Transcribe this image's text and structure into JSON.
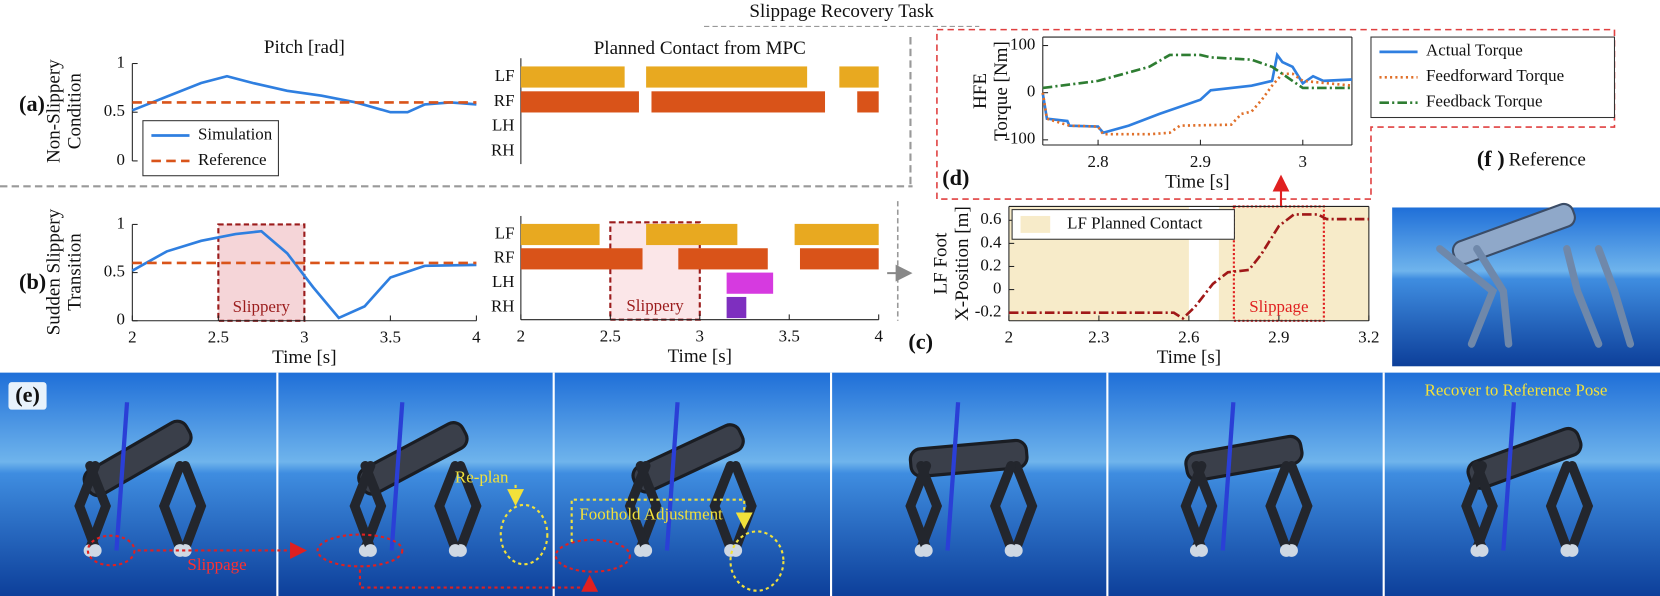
{
  "title": "Slippage Recovery Task",
  "panel_labels": [
    "(a)",
    "(b)",
    "(c)",
    "(d)",
    "(e)"
  ],
  "row_labels": [
    [
      "Non-Slippery",
      "Condition"
    ],
    [
      "Sudden Slippery",
      "Transition"
    ]
  ],
  "chart_data": [
    {
      "type": "line",
      "title": "Pitch [rad]",
      "xlim": [
        2,
        4
      ],
      "ylim": [
        0,
        1
      ],
      "yticks": [
        0,
        0.5,
        1
      ],
      "legend": "lower left",
      "x": [
        2,
        2.2,
        2.4,
        2.55,
        2.7,
        2.9,
        3.1,
        3.3,
        3.5,
        3.6,
        3.7,
        3.85,
        4
      ],
      "series": [
        {
          "name": "Simulation",
          "color": "#2f7fe0",
          "style": "solid",
          "values": [
            0.52,
            0.66,
            0.8,
            0.87,
            0.8,
            0.72,
            0.67,
            0.6,
            0.5,
            0.5,
            0.58,
            0.6,
            0.58
          ]
        },
        {
          "name": "Reference",
          "color": "#d9541a",
          "style": "dashed",
          "x": [
            2,
            4
          ],
          "values": [
            0.6,
            0.6
          ]
        }
      ]
    },
    {
      "type": "gantt",
      "title": "Planned Contact from MPC",
      "xlim": [
        2,
        4
      ],
      "series": [
        {
          "name": "LF",
          "color": "#e8a920",
          "intervals": [
            [
              2,
              2.58
            ],
            [
              2.7,
              3.6
            ],
            [
              3.78,
              4
            ]
          ]
        },
        {
          "name": "RF",
          "color": "#d95319",
          "intervals": [
            [
              2,
              2.66
            ],
            [
              2.73,
              3.7
            ],
            [
              3.88,
              4
            ]
          ]
        },
        {
          "name": "LH",
          "color": "#d63ae0",
          "intervals": []
        },
        {
          "name": "RH",
          "color": "#7e2fbf",
          "intervals": []
        }
      ]
    },
    {
      "type": "line",
      "xlabel": "Time [s]",
      "xlim": [
        2,
        4
      ],
      "xticks": [
        2,
        2.5,
        3,
        3.5,
        4
      ],
      "ylim": [
        0,
        1
      ],
      "yticks": [
        0,
        0.5,
        1
      ],
      "highlight": {
        "range": [
          2.5,
          3
        ],
        "label": "Slippery",
        "fill": "#f5d5d8",
        "edge": "#9b1c1c"
      },
      "x": [
        2,
        2.2,
        2.4,
        2.6,
        2.75,
        2.9,
        3.05,
        3.2,
        3.35,
        3.5,
        3.7,
        4
      ],
      "series": [
        {
          "color": "#2f7fe0",
          "style": "solid",
          "values": [
            0.52,
            0.72,
            0.83,
            0.9,
            0.93,
            0.7,
            0.35,
            0.03,
            0.15,
            0.45,
            0.57,
            0.58
          ]
        },
        {
          "color": "#d9541a",
          "style": "dashed",
          "x": [
            2,
            4
          ],
          "values": [
            0.6,
            0.6
          ]
        }
      ]
    },
    {
      "type": "gantt",
      "xlabel": "Time [s]",
      "xlim": [
        2,
        4
      ],
      "xticks": [
        2,
        2.5,
        3,
        3.5,
        4
      ],
      "highlight": {
        "range": [
          2.5,
          3
        ],
        "label": "Slippery",
        "fill": "#fbe6e8",
        "edge": "#9b1c1c"
      },
      "series": [
        {
          "name": "LF",
          "color": "#e8a920",
          "intervals": [
            [
              2,
              2.44
            ],
            [
              2.7,
              3.21
            ],
            [
              3.53,
              4
            ]
          ]
        },
        {
          "name": "RF",
          "color": "#d95319",
          "intervals": [
            [
              2,
              2.68
            ],
            [
              2.88,
              3.38
            ],
            [
              3.56,
              4
            ]
          ]
        },
        {
          "name": "LH",
          "color": "#d63ae0",
          "intervals": [
            [
              3.15,
              3.41
            ]
          ]
        },
        {
          "name": "RH",
          "color": "#7e2fbf",
          "intervals": [
            [
              3.15,
              3.26
            ]
          ]
        }
      ]
    },
    {
      "type": "line",
      "ylabel": [
        "LF Foot",
        "X-Position [m]"
      ],
      "xlabel": "Time [s]",
      "xlim": [
        2,
        3.2
      ],
      "xticks": [
        2,
        2.3,
        2.6,
        2.9,
        3.2
      ],
      "ylim": [
        -0.27,
        0.72
      ],
      "yticks": [
        -0.2,
        0,
        0.2,
        0.4,
        0.6
      ],
      "legend": "upper left",
      "frame": true,
      "shading": {
        "name": "LF Planned Contact",
        "color": "#f7ebc9",
        "intervals": [
          [
            2,
            2.6
          ],
          [
            2.7,
            3.2
          ]
        ]
      },
      "highlight": {
        "range": [
          2.75,
          3.05
        ],
        "label": "Slippage",
        "fill": "none",
        "edge": "#e02020"
      },
      "series": [
        {
          "color": "#a01818",
          "style": "dashdot",
          "x": [
            2,
            2.55,
            2.58,
            2.62,
            2.68,
            2.73,
            2.8,
            2.84,
            2.9,
            2.95,
            3.03,
            3.06,
            3.2
          ],
          "values": [
            -0.2,
            -0.2,
            -0.25,
            -0.15,
            0.05,
            0.15,
            0.17,
            0.3,
            0.55,
            0.65,
            0.65,
            0.61,
            0.61
          ]
        }
      ]
    },
    {
      "type": "line",
      "ylabel": [
        "HFE",
        "Torque [Nm]"
      ],
      "xlabel": "Time [s]",
      "xlim": [
        2.746,
        3.048
      ],
      "xticks": [
        2.8,
        2.9,
        3
      ],
      "ylim": [
        -111,
        118
      ],
      "yticks": [
        -100,
        0,
        100
      ],
      "legend": "outside right",
      "frame": true,
      "series": [
        {
          "name": "Actual Torque",
          "color": "#2f7fe0",
          "style": "solid",
          "x": [
            2.746,
            2.75,
            2.77,
            2.772,
            2.8,
            2.805,
            2.83,
            2.86,
            2.9,
            2.91,
            2.95,
            2.96,
            2.97,
            2.975,
            2.98,
            2.99,
            3.0,
            3.01,
            3.02,
            3.048
          ],
          "values": [
            -2,
            -55,
            -60,
            -70,
            -72,
            -85,
            -70,
            -45,
            -15,
            5,
            15,
            20,
            25,
            80,
            65,
            55,
            20,
            35,
            25,
            28
          ]
        },
        {
          "name": "Feedforward Torque",
          "color": "#e0702a",
          "style": "dotted",
          "x": [
            2.746,
            2.75,
            2.772,
            2.8,
            2.805,
            2.85,
            2.87,
            2.88,
            2.93,
            2.94,
            2.95,
            2.96,
            2.97,
            2.98,
            2.99,
            3.0,
            3.048
          ],
          "values": [
            0,
            -55,
            -70,
            -72,
            -88,
            -88,
            -85,
            -70,
            -68,
            -45,
            -40,
            -15,
            15,
            40,
            40,
            25,
            15
          ]
        },
        {
          "name": "Feedback Torque",
          "color": "#2e7d32",
          "style": "dashdot",
          "x": [
            2.746,
            2.8,
            2.85,
            2.87,
            2.9,
            2.91,
            2.95,
            2.97,
            3.0,
            3.048
          ],
          "values": [
            10,
            25,
            55,
            80,
            80,
            75,
            70,
            55,
            10,
            10
          ]
        }
      ]
    }
  ],
  "photos": {
    "e_annotations": [
      "Slippage",
      "Re-plan",
      "Foothold Adjustment",
      "Recover to Reference Pose"
    ],
    "f_label": "(f )",
    "f_title": "Reference"
  }
}
